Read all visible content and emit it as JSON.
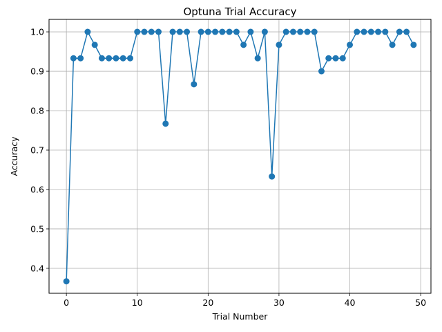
{
  "chart_data": {
    "type": "line",
    "title": "Optuna Trial Accuracy",
    "xlabel": "Trial Number",
    "ylabel": "Accuracy",
    "xlim": [
      -2.45,
      51.45
    ],
    "ylim": [
      0.3367,
      1.0317
    ],
    "xticks": [
      0,
      10,
      20,
      30,
      40,
      50
    ],
    "xtick_labels": [
      "0",
      "10",
      "20",
      "30",
      "40",
      "50"
    ],
    "yticks": [
      0.4,
      0.5,
      0.6,
      0.7,
      0.8,
      0.9,
      1.0
    ],
    "ytick_labels": [
      "0.4",
      "0.5",
      "0.6",
      "0.7",
      "0.8",
      "0.9",
      "1.0"
    ],
    "grid": true,
    "marker": "circle",
    "color": "#1f77b4",
    "x": [
      0,
      1,
      2,
      3,
      4,
      5,
      6,
      7,
      8,
      9,
      10,
      11,
      12,
      13,
      14,
      15,
      16,
      17,
      18,
      19,
      20,
      21,
      22,
      23,
      24,
      25,
      26,
      27,
      28,
      29,
      30,
      31,
      32,
      33,
      34,
      35,
      36,
      37,
      38,
      39,
      40,
      41,
      42,
      43,
      44,
      45,
      46,
      47,
      48,
      49
    ],
    "y": [
      0.367,
      0.933,
      0.933,
      1.0,
      0.967,
      0.933,
      0.933,
      0.933,
      0.933,
      0.933,
      1.0,
      1.0,
      1.0,
      1.0,
      0.767,
      1.0,
      1.0,
      1.0,
      0.867,
      1.0,
      1.0,
      1.0,
      1.0,
      1.0,
      1.0,
      0.967,
      1.0,
      0.933,
      1.0,
      0.633,
      0.967,
      1.0,
      1.0,
      1.0,
      1.0,
      1.0,
      0.9,
      0.933,
      0.933,
      0.933,
      0.967,
      1.0,
      1.0,
      1.0,
      1.0,
      1.0,
      0.967,
      1.0,
      1.0,
      0.967
    ]
  }
}
